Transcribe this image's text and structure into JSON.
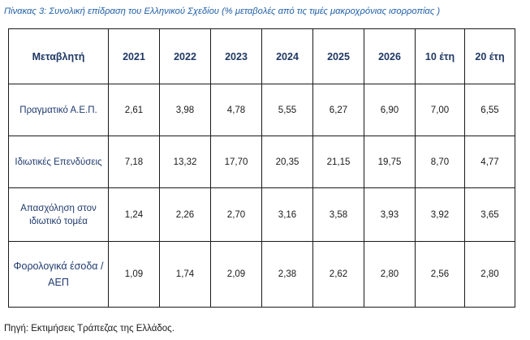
{
  "caption": "Πίνακας 3: Συνολική επίδραση του Ελληνικού Σχεδίου (% μεταβολές από τις τιμές μακροχρόνιας ισορροπίας )",
  "table": {
    "headers": [
      "Μεταβλητή",
      "2021",
      "2022",
      "2023",
      "2024",
      "2025",
      "2026",
      "10 έτη",
      "20 έτη"
    ],
    "rows": [
      {
        "label": "Πραγματικό Α.Ε.Π.",
        "values": [
          "2,61",
          "3,98",
          "4,78",
          "5,55",
          "6,27",
          "6,90",
          "7,00",
          "6,55"
        ]
      },
      {
        "label": "Ιδιωτικές Επενδύσεις",
        "values": [
          "7,18",
          "13,32",
          "17,70",
          "20,35",
          "21,15",
          "19,75",
          "8,70",
          "4,77"
        ]
      },
      {
        "label": "Απασχόληση στον ιδιωτικό τομέα",
        "values": [
          "1,24",
          "2,26",
          "2,70",
          "3,16",
          "3,58",
          "3,93",
          "3,92",
          "3,65"
        ]
      },
      {
        "label": "Φορολογικά έσοδα / ΑΕΠ",
        "values": [
          "1,09",
          "1,74",
          "2,09",
          "2,38",
          "2,62",
          "2,80",
          "2,56",
          "2,80"
        ]
      }
    ]
  },
  "source": "Πηγή: Εκτιμήσεις Τράπεζας της Ελλάδος."
}
